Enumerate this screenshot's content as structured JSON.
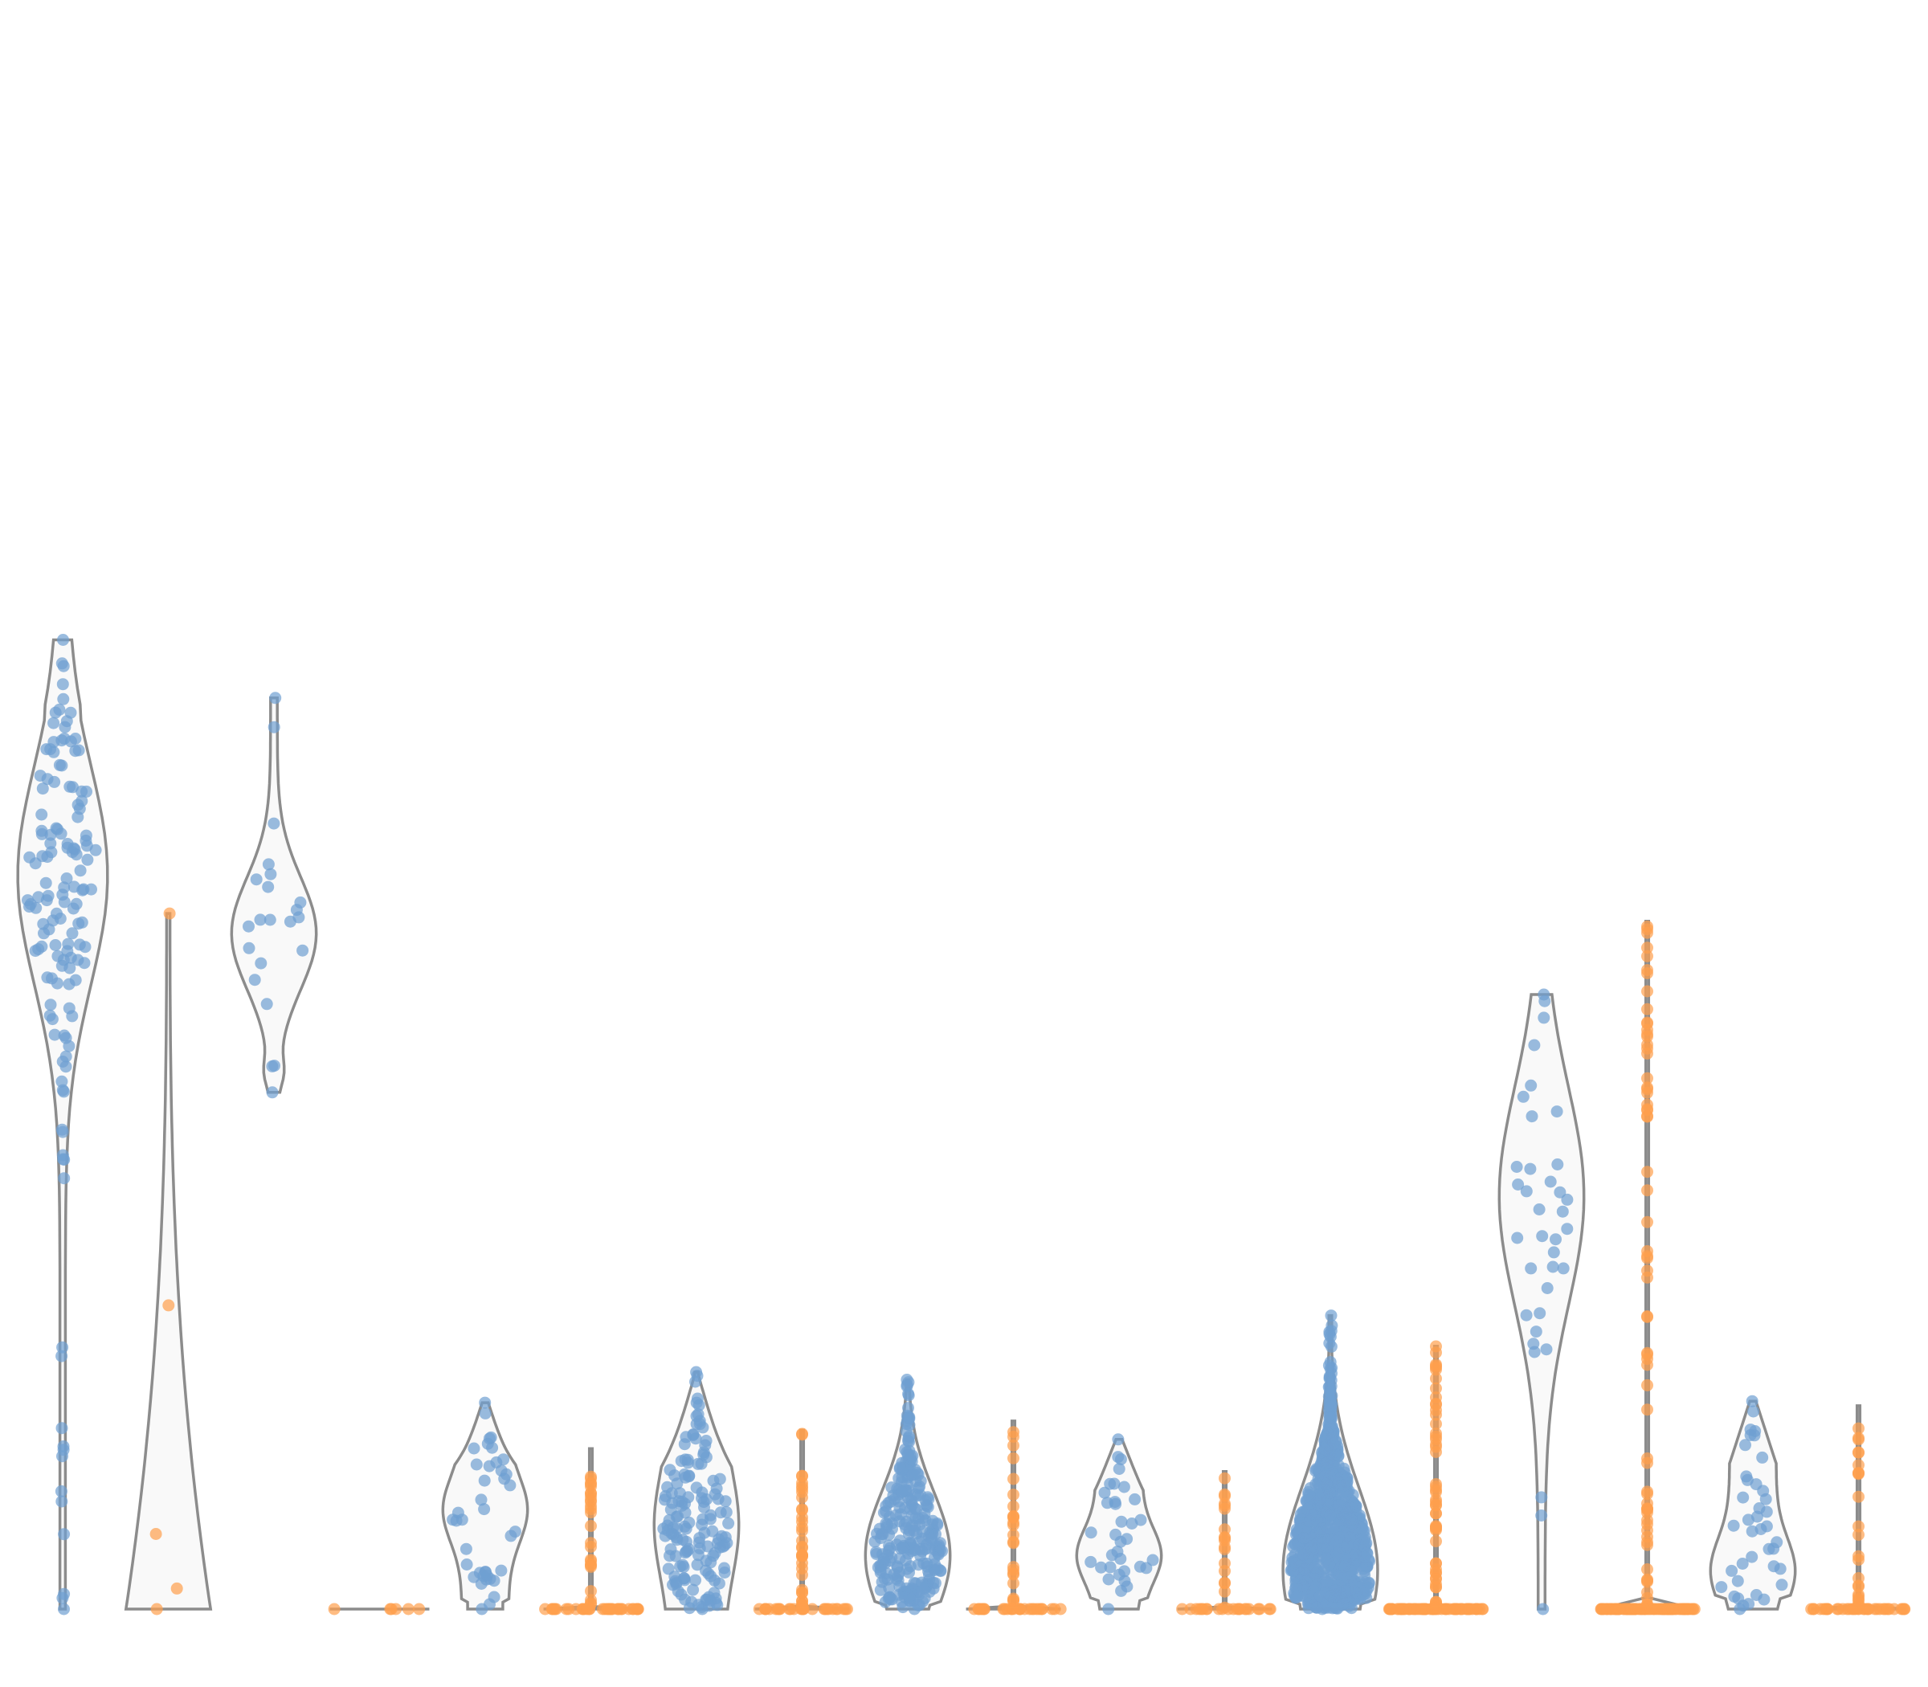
{
  "chart_data": {
    "type": "violin",
    "title": "",
    "xlabel": "",
    "ylabel": "",
    "grid": false,
    "legend": "none",
    "ylim": [
      0,
      100
    ],
    "colors": {
      "blue": "#6f9fd1",
      "orange": "#ffa04d",
      "violin_fill": "#f9f9f9",
      "violin_stroke": "#8c8c8c"
    },
    "series": [
      {
        "color": "blue",
        "min": 0,
        "max": 63.4,
        "mode": 48.0,
        "n": 140,
        "shape": "long",
        "width": 0.9
      },
      {
        "color": "orange",
        "min": 0,
        "max": 45.5,
        "mode": 0,
        "n": 5,
        "shape": "skewlow",
        "width": 0.85
      },
      {
        "color": "blue",
        "min": 33.8,
        "max": 59.6,
        "mode": 44.2,
        "n": 22,
        "shape": "bulb",
        "width": 0.85
      },
      {
        "color": "orange",
        "min": 0,
        "max": 0.2,
        "mode": 0,
        "n": 6,
        "shape": "flat",
        "width": 0.85
      },
      {
        "color": "blue",
        "min": 0,
        "max": 13.5,
        "mode": 6.5,
        "n": 40,
        "shape": "vase",
        "width": 0.85
      },
      {
        "color": "orange",
        "min": 0,
        "max": 10.5,
        "mode": 0,
        "n": 60,
        "shape": "spike",
        "width": 0.95
      },
      {
        "color": "blue",
        "min": 0,
        "max": 15.5,
        "mode": 5.5,
        "n": 150,
        "shape": "blob",
        "width": 0.85
      },
      {
        "color": "orange",
        "min": 0,
        "max": 11.7,
        "mode": 0,
        "n": 60,
        "shape": "spike",
        "width": 0.95
      },
      {
        "color": "blue",
        "min": 0,
        "max": 15.0,
        "mode": 3.5,
        "n": 260,
        "shape": "cone",
        "width": 0.85
      },
      {
        "color": "orange",
        "min": 0,
        "max": 12.3,
        "mode": 0,
        "n": 50,
        "shape": "spike",
        "width": 0.95
      },
      {
        "color": "blue",
        "min": 0,
        "max": 11.1,
        "mode": 3.5,
        "n": 35,
        "shape": "vase",
        "width": 0.85
      },
      {
        "color": "orange",
        "min": 0,
        "max": 9.0,
        "mode": 0,
        "n": 40,
        "shape": "spike",
        "width": 0.95
      },
      {
        "color": "blue",
        "min": 0,
        "max": 19.2,
        "mode": 2.5,
        "n": 900,
        "shape": "cone",
        "width": 0.95
      },
      {
        "color": "orange",
        "min": 0,
        "max": 17.2,
        "mode": 0,
        "n": 120,
        "shape": "spike",
        "width": 0.95
      },
      {
        "color": "blue",
        "min": 0,
        "max": 40.2,
        "mode": 27.0,
        "n": 36,
        "shape": "long2",
        "width": 0.85
      },
      {
        "color": "orange",
        "min": 0,
        "max": 45.0,
        "mode": 0,
        "n": 160,
        "shape": "spike",
        "width": 0.95
      },
      {
        "color": "blue",
        "min": 0,
        "max": 13.6,
        "mode": 2.5,
        "n": 40,
        "shape": "vase",
        "width": 0.85
      },
      {
        "color": "orange",
        "min": 0,
        "max": 13.3,
        "mode": 0,
        "n": 60,
        "shape": "spike",
        "width": 0.95
      }
    ]
  }
}
